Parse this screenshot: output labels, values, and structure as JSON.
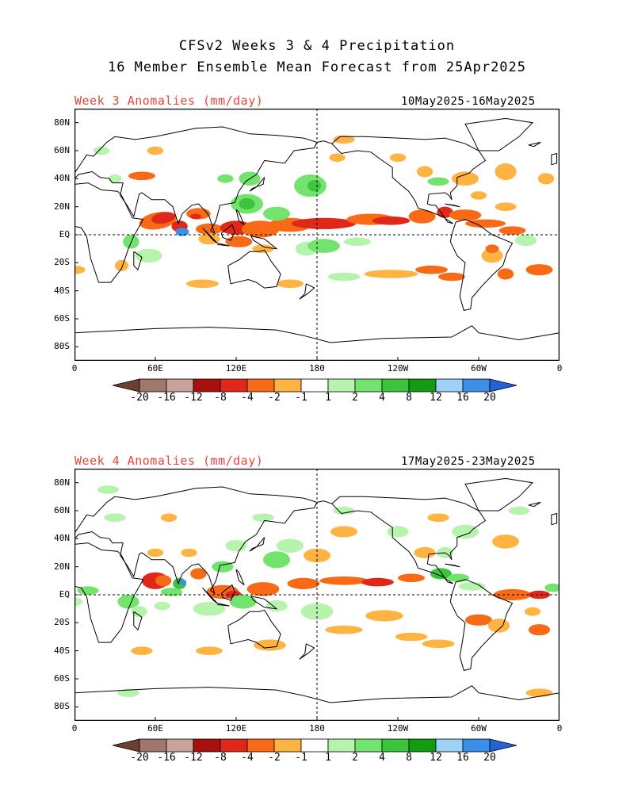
{
  "titles": {
    "line1": "CFSv2 Weeks 3 & 4 Precipitation",
    "line2": "16 Member Ensemble Mean Forecast from 25Apr2025"
  },
  "panels": [
    {
      "label": "Week 3 Anomalies (mm/day)",
      "dates": "10May2025-16May2025"
    },
    {
      "label": "Week 4 Anomalies (mm/day)",
      "dates": "17May2025-23May2025"
    }
  ],
  "lat_labels": [
    "80N",
    "60N",
    "40N",
    "20N",
    "EQ",
    "20S",
    "40S",
    "60S",
    "80S"
  ],
  "lon_labels": [
    "0",
    "60E",
    "120E",
    "180",
    "120W",
    "60W",
    "0"
  ],
  "colorbar": {
    "labels": [
      "-20",
      "-16",
      "-12",
      "-8",
      "-4",
      "-2",
      "-1",
      "1",
      "2",
      "4",
      "8",
      "12",
      "16",
      "20"
    ],
    "colors": [
      "#6b4032",
      "#a0786b",
      "#c9a39a",
      "#a80f0f",
      "#e0281a",
      "#f86a16",
      "#ffb342",
      "#ffffff",
      "#b6f4ad",
      "#72e36d",
      "#3cc43c",
      "#139b13",
      "#9ed1f6",
      "#3c8fe8",
      "#2463d6"
    ]
  },
  "anomaly_colors": {
    "dry_light": "#ffb342",
    "dry_medium": "#f86a16",
    "dry_strong": "#e0281a",
    "wet_light": "#b6f4ad",
    "wet_medium": "#72e36d",
    "wet_strong": "#3cc43c",
    "wet_blue": "#3c8fe8"
  }
}
